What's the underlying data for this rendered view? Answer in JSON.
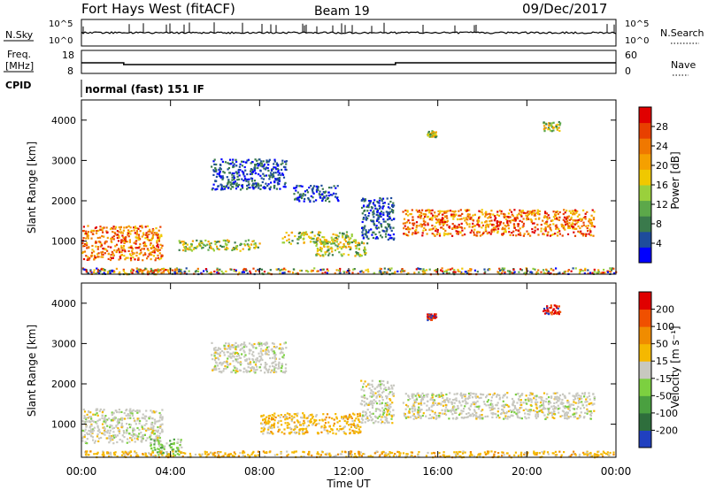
{
  "header": {
    "station": "Fort Hays West (fitACF)",
    "beam": "Beam 19",
    "date": "09/Dec/2017"
  },
  "status_panels": {
    "nsky_label": "N.Sky",
    "nsky_ticks": [
      "10^5",
      "10^0"
    ],
    "nsearch_label": "N.Search",
    "nsearch_ticks": [
      "10^5",
      "10^0"
    ],
    "freq_label": "Freq.",
    "freq_unit": "[MHz]",
    "freq_ticks": [
      "18",
      "8"
    ],
    "nave_label": "Nave",
    "nave_ticks": [
      "60",
      "0"
    ],
    "cpid_label": "CPID",
    "cpid_value": "normal (fast) 151 IF"
  },
  "axes": {
    "ylabel": "Slant Range [km]",
    "xlabel": "Time UT",
    "y_ticks": [
      "4000",
      "3000",
      "2000",
      "1000"
    ],
    "x_ticks": [
      "00:00",
      "04:00",
      "08:00",
      "12:00",
      "16:00",
      "20:00",
      "00:00"
    ]
  },
  "colorbars": {
    "power": {
      "label": "Power [dB]",
      "ticks": [
        "28",
        "24",
        "20",
        "16",
        "12",
        "8",
        "4"
      ],
      "colors": [
        "#0000ff",
        "#1e4c9c",
        "#3a7a4c",
        "#5ca84a",
        "#9ad03c",
        "#f0c800",
        "#f5a000",
        "#f07800",
        "#e84000",
        "#e00000"
      ]
    },
    "velocity": {
      "label": "Velocity [m s⁻¹]",
      "ticks": [
        "200",
        "100",
        "50",
        "15",
        "-15",
        "-50",
        "-100",
        "-200"
      ],
      "colors": [
        "#2040c0",
        "#2e6e3c",
        "#4aa040",
        "#7cd040",
        "#c8c8c0",
        "#f5b800",
        "#f08c00",
        "#f05000",
        "#e00000"
      ]
    }
  },
  "chart_data": [
    {
      "type": "heatmap",
      "title": "Power",
      "x_range_hours": [
        0,
        24
      ],
      "ylim": [
        180,
        4500
      ],
      "regions": [
        {
          "t": [
            0.0,
            3.6
          ],
          "r": [
            550,
            1400
          ],
          "level": "high"
        },
        {
          "t": [
            2.2,
            4.3
          ],
          "r": [
            230,
            330
          ],
          "level": "high"
        },
        {
          "t": [
            4.3,
            8.0
          ],
          "r": [
            780,
            1050
          ],
          "level": "mid"
        },
        {
          "t": [
            5.8,
            9.2
          ],
          "r": [
            2300,
            3050
          ],
          "level": "low"
        },
        {
          "t": [
            9.0,
            12.3
          ],
          "r": [
            950,
            1250
          ],
          "level": "mid"
        },
        {
          "t": [
            9.5,
            11.5
          ],
          "r": [
            2000,
            2400
          ],
          "level": "low"
        },
        {
          "t": [
            10.5,
            12.8
          ],
          "r": [
            650,
            1050
          ],
          "level": "mid"
        },
        {
          "t": [
            12.5,
            14.0
          ],
          "r": [
            1050,
            2100
          ],
          "level": "low"
        },
        {
          "t": [
            14.4,
            23.0
          ],
          "r": [
            1150,
            1800
          ],
          "level": "high"
        },
        {
          "t": [
            15.5,
            15.9
          ],
          "r": [
            3600,
            3750
          ],
          "level": "mid"
        },
        {
          "t": [
            20.7,
            21.5
          ],
          "r": [
            3750,
            3980
          ],
          "level": "mid"
        },
        {
          "t": [
            0.0,
            24.0
          ],
          "r": [
            200,
            350
          ],
          "level": "mixed"
        }
      ]
    },
    {
      "type": "heatmap",
      "title": "Velocity",
      "x_range_hours": [
        0,
        24
      ],
      "ylim": [
        180,
        4500
      ],
      "regions": [
        {
          "t": [
            0.0,
            3.6
          ],
          "r": [
            550,
            1400
          ],
          "v": "near-zero"
        },
        {
          "t": [
            3.0,
            4.5
          ],
          "r": [
            250,
            650
          ],
          "v": "positive-small"
        },
        {
          "t": [
            5.8,
            9.2
          ],
          "r": [
            2300,
            3050
          ],
          "v": "near-zero"
        },
        {
          "t": [
            8.0,
            12.5
          ],
          "r": [
            780,
            1300
          ],
          "v": "negative"
        },
        {
          "t": [
            12.5,
            14.0
          ],
          "r": [
            1050,
            2100
          ],
          "v": "near-zero"
        },
        {
          "t": [
            14.4,
            23.0
          ],
          "r": [
            1150,
            1800
          ],
          "v": "near-zero"
        },
        {
          "t": [
            15.5,
            15.9
          ],
          "r": [
            3600,
            3750
          ],
          "v": "negative-large"
        },
        {
          "t": [
            20.7,
            21.5
          ],
          "r": [
            3750,
            3980
          ],
          "v": "negative-large"
        },
        {
          "t": [
            0.0,
            24.0
          ],
          "r": [
            200,
            350
          ],
          "v": "negative"
        }
      ]
    }
  ]
}
